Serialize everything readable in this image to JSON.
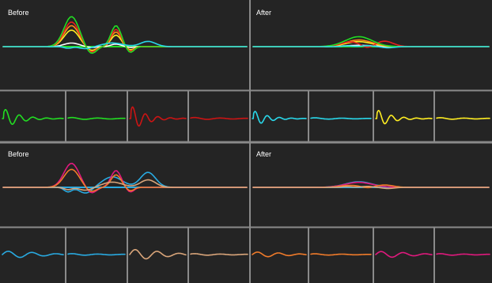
{
  "labels": {
    "top_left": "Before",
    "top_right": "After",
    "bottom_left": "Before",
    "bottom_right": "After"
  },
  "colors": {
    "background": "#242424",
    "grid": "#8a8a8a",
    "baseline_top": "#22dd22",
    "baseline_bottom": "#29aae1"
  },
  "top": {
    "before": [
      {
        "color": "#ffffff",
        "amp": 0.12,
        "mode": "twin"
      },
      {
        "color": "#ffee22",
        "amp": 0.55,
        "mode": "twin"
      },
      {
        "color": "#ff8a1a",
        "amp": 0.7,
        "mode": "twin"
      },
      {
        "color": "#e62020",
        "amp": 0.82,
        "mode": "twin"
      },
      {
        "color": "#22dd22",
        "amp": 1.0,
        "mode": "twin"
      },
      {
        "color": "#29d8ea",
        "amp": 0.35,
        "mode": "wave"
      }
    ],
    "after": [
      {
        "color": "#ffffff",
        "amp": 0.12,
        "mode": "hump"
      },
      {
        "color": "#ffee22",
        "amp": 0.45,
        "mode": "hump"
      },
      {
        "color": "#ff8a1a",
        "amp": 0.6,
        "mode": "hump"
      },
      {
        "color": "#e62020",
        "amp": 0.7,
        "mode": "hump2"
      },
      {
        "color": "#22dd22",
        "amp": 0.9,
        "mode": "hump"
      },
      {
        "color": "#29d8ea",
        "amp": 0.35,
        "mode": "flatwave"
      }
    ],
    "mini": [
      {
        "color": "#22dd22",
        "amp": 1.0,
        "mode": "decay"
      },
      {
        "color": "#22dd22",
        "amp": 0.35,
        "mode": "small"
      },
      {
        "color": "#cc1414",
        "amp": 1.3,
        "mode": "decay"
      },
      {
        "color": "#cc1414",
        "amp": 0.35,
        "mode": "small"
      },
      {
        "color": "#29d8ea",
        "amp": 0.8,
        "mode": "decay"
      },
      {
        "color": "#29d8ea",
        "amp": 0.25,
        "mode": "small"
      },
      {
        "color": "#ffee22",
        "amp": 0.9,
        "mode": "decay"
      },
      {
        "color": "#ffee22",
        "amp": 0.3,
        "mode": "small"
      }
    ]
  },
  "bottom": {
    "before": [
      {
        "color": "#29aae1",
        "amp": 1.0,
        "mode": "wave"
      },
      {
        "color": "#e0197d",
        "amp": 0.8,
        "mode": "twin"
      },
      {
        "color": "#f07b2a",
        "amp": 0.6,
        "mode": "twin"
      },
      {
        "color": "#d9a57a",
        "amp": 0.5,
        "mode": "wave"
      }
    ],
    "after": [
      {
        "color": "#29aae1",
        "amp": 0.5,
        "mode": "hump"
      },
      {
        "color": "#e0197d",
        "amp": 0.45,
        "mode": "hump"
      },
      {
        "color": "#f07b2a",
        "amp": 0.3,
        "mode": "hump2"
      },
      {
        "color": "#d9a57a",
        "amp": 0.35,
        "mode": "flatwave"
      }
    ],
    "mini": [
      {
        "color": "#29aae1",
        "amp": 0.6,
        "mode": "wavy"
      },
      {
        "color": "#29aae1",
        "amp": 0.3,
        "mode": "small"
      },
      {
        "color": "#d9a57a",
        "amp": 0.9,
        "mode": "wavy"
      },
      {
        "color": "#d9a57a",
        "amp": 0.3,
        "mode": "small"
      },
      {
        "color": "#f07b2a",
        "amp": 0.45,
        "mode": "wavy"
      },
      {
        "color": "#f07b2a",
        "amp": 0.25,
        "mode": "small"
      },
      {
        "color": "#e0197d",
        "amp": 0.55,
        "mode": "wavy"
      },
      {
        "color": "#e0197d",
        "amp": 0.3,
        "mode": "small"
      }
    ]
  }
}
